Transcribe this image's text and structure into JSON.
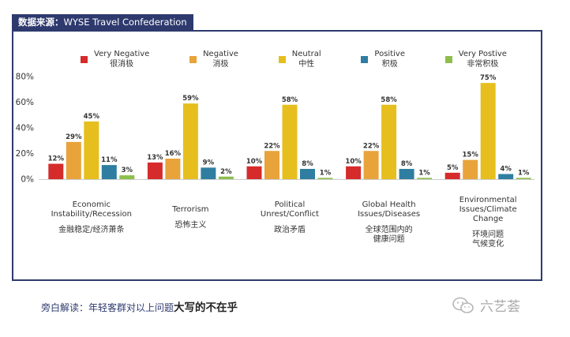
{
  "source": {
    "prefix": "数据来源：",
    "name": "WYSE Travel Confederation"
  },
  "legend": [
    {
      "en": "Very Negative",
      "cn": "很消极",
      "color": "#d62b2b"
    },
    {
      "en": "Negative",
      "cn": "消极",
      "color": "#e8a33a"
    },
    {
      "en": "Neutral",
      "cn": "中性",
      "color": "#e6bf1e"
    },
    {
      "en": "Positive",
      "cn": "积极",
      "color": "#2f7ea1"
    },
    {
      "en": "Very Postive",
      "cn": "非常积极",
      "color": "#8dbf4a"
    }
  ],
  "chart_data": {
    "type": "bar",
    "categories": [
      {
        "en": "Economic\nInstability/Recession",
        "cn": "金融稳定/经济萧条"
      },
      {
        "en": "Terrorism",
        "cn": "恐怖主义"
      },
      {
        "en": "Political\nUnrest/Conflict",
        "cn": "政治矛盾"
      },
      {
        "en": "Global Health\nIssues/Diseases",
        "cn": "全球范围内的\n健康问题"
      },
      {
        "en": "Environmental\nIssues/Climate\nChange",
        "cn": "环境问题\n气候变化"
      }
    ],
    "series": [
      {
        "name": "Very Negative",
        "values": [
          12,
          13,
          10,
          10,
          5
        ]
      },
      {
        "name": "Negative",
        "values": [
          29,
          16,
          22,
          22,
          15
        ]
      },
      {
        "name": "Neutral",
        "values": [
          45,
          59,
          58,
          58,
          75
        ]
      },
      {
        "name": "Positive",
        "values": [
          11,
          9,
          8,
          8,
          4
        ]
      },
      {
        "name": "Very Postive",
        "values": [
          3,
          2,
          1,
          1,
          1
        ]
      }
    ],
    "colors": [
      "#d62b2b",
      "#e8a33a",
      "#e6bf1e",
      "#2f7ea1",
      "#8dbf4a"
    ],
    "yticks": [
      "0%",
      "20%",
      "40%",
      "60%",
      "80%"
    ],
    "ylim": [
      0,
      80
    ],
    "value_suffix": "%",
    "grid": false,
    "legend_position": "top"
  },
  "footer": {
    "note": "旁白解读：年轻客群对以上问题",
    "emphasis": "大写的不在乎",
    "brand": "六艺荟"
  }
}
